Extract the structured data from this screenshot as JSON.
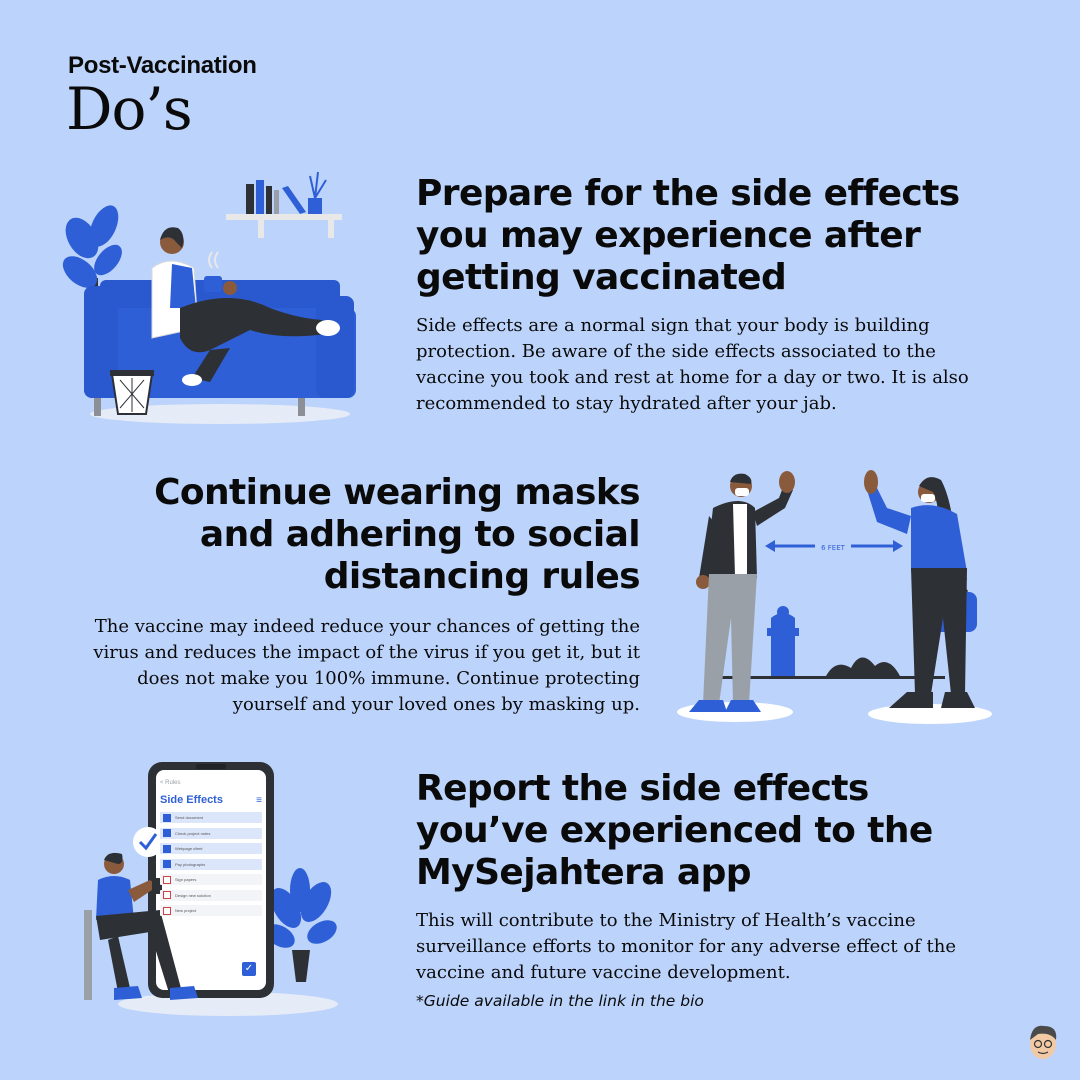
{
  "header": {
    "eyebrow": "Post-Vaccination",
    "title": "Do’s"
  },
  "sections": [
    {
      "heading": "Prepare for the side effects you may experience after getting vaccinated",
      "body": "Side effects are a normal sign that your body is building protection. Be aware of the side effects associated to the vaccine you took and rest at home for a day or two. It is also recommended to stay hydrated after your jab."
    },
    {
      "heading": "Continue wearing masks and adhering to social distancing rules",
      "body": "The vaccine may indeed reduce your chances of getting the virus and reduces the impact of the virus if you get it, but it does not make you 100% immune. Continue protecting yourself and your loved ones by masking up."
    },
    {
      "heading": "Report the side effects you’ve experienced to the MySejahtera app",
      "body": "This will contribute to the Ministry of Health’s vaccine surveillance efforts to monitor for any adverse effect of the vaccine and future vaccine development.",
      "note": "*Guide available in the link in the bio"
    }
  ],
  "illustrations": {
    "distance_label": "6 FEET",
    "phone": {
      "back_label": "< Rules",
      "title": "Side Effects",
      "items": [
        {
          "label": "Send document",
          "checked": true
        },
        {
          "label": "Check project notes",
          "checked": true
        },
        {
          "label": "Webpage client",
          "checked": true
        },
        {
          "label": "Pay photographs",
          "checked": true
        },
        {
          "label": "Sign papers",
          "checked": false
        },
        {
          "label": "Design new solution",
          "checked": false
        },
        {
          "label": "New project",
          "checked": false
        }
      ]
    }
  },
  "colors": {
    "background": "#bcd3fb",
    "accent_blue": "#2f5fd6",
    "dark": "#2d3136"
  }
}
